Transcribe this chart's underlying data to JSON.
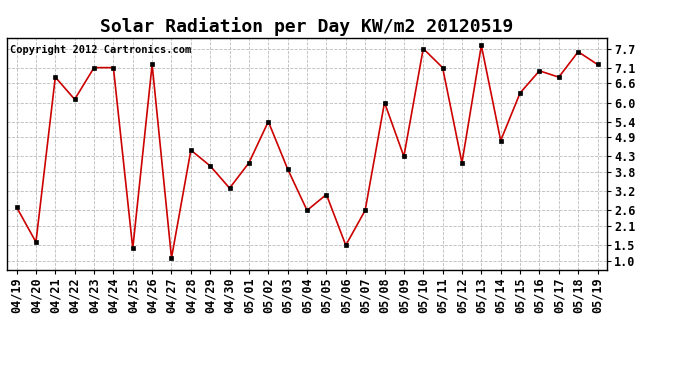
{
  "title": "Solar Radiation per Day KW/m2 20120519",
  "copyright": "Copyright 2012 Cartronics.com",
  "x_labels": [
    "04/19",
    "04/20",
    "04/21",
    "04/22",
    "04/23",
    "04/24",
    "04/25",
    "04/26",
    "04/27",
    "04/28",
    "04/29",
    "04/30",
    "05/01",
    "05/02",
    "05/03",
    "05/04",
    "05/05",
    "05/06",
    "05/07",
    "05/08",
    "05/09",
    "05/10",
    "05/11",
    "05/12",
    "05/13",
    "05/14",
    "05/15",
    "05/16",
    "05/17",
    "05/18",
    "05/19"
  ],
  "y_values": [
    2.7,
    1.6,
    6.8,
    6.1,
    7.1,
    7.1,
    1.4,
    7.2,
    1.1,
    4.5,
    4.0,
    3.3,
    4.1,
    5.4,
    3.9,
    2.6,
    3.1,
    1.5,
    2.6,
    6.0,
    4.3,
    7.7,
    7.1,
    4.1,
    7.8,
    4.8,
    6.3,
    7.0,
    6.8,
    7.6,
    7.2
  ],
  "line_color": "#cc0000",
  "marker_color": "#000000",
  "bg_color": "#ffffff",
  "plot_bg_color": "#ffffff",
  "grid_color": "#bbbbbb",
  "ylim": [
    0.72,
    8.05
  ],
  "yticks": [
    1.0,
    1.5,
    2.1,
    2.6,
    3.2,
    3.8,
    4.3,
    4.9,
    5.4,
    6.0,
    6.6,
    7.1,
    7.7
  ],
  "title_fontsize": 13,
  "tick_fontsize": 8.5,
  "copyright_fontsize": 7.5
}
